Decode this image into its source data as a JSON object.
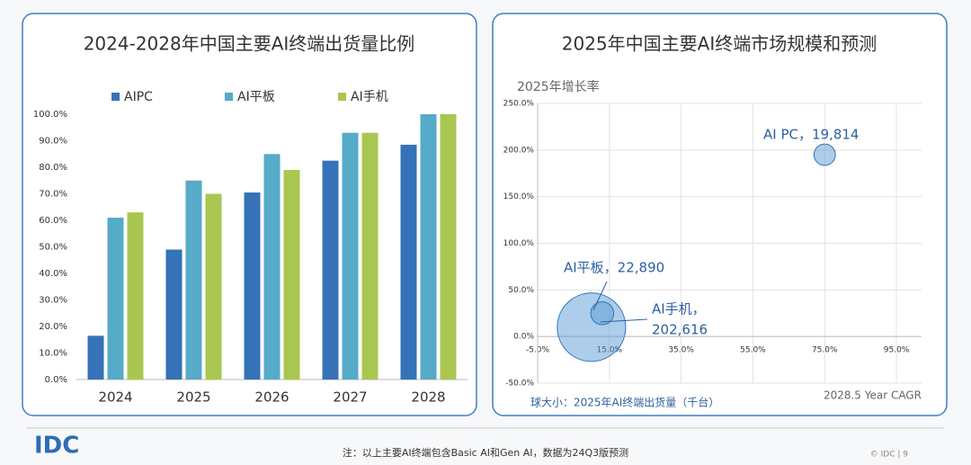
{
  "chart_data": [
    {
      "type": "bar",
      "title": "2024-2028年中国主要AI终端出货量比例",
      "categories": [
        "2024",
        "2025",
        "2026",
        "2027",
        "2028"
      ],
      "series": [
        {
          "name": "AIPC",
          "color": "#3572b8",
          "values": [
            16.5,
            49,
            70.5,
            82.5,
            88.5
          ]
        },
        {
          "name": "AI平板",
          "color": "#55abc8",
          "values": [
            61,
            75,
            85,
            93,
            100
          ]
        },
        {
          "name": "AI手机",
          "color": "#a9c650",
          "values": [
            63,
            70,
            79,
            93,
            100
          ]
        }
      ],
      "ylim": [
        0,
        100
      ],
      "yticks": [
        {
          "value": 0,
          "label": "0.0%"
        },
        {
          "value": 10,
          "label": "10.0%"
        },
        {
          "value": 20,
          "label": "20.0%"
        },
        {
          "value": 30,
          "label": "30.0%"
        },
        {
          "value": 40,
          "label": "40.0%"
        },
        {
          "value": 50,
          "label": "50.0%"
        },
        {
          "value": 60,
          "label": "60.0%"
        },
        {
          "value": 70,
          "label": "70.0%"
        },
        {
          "value": 80,
          "label": "80.0%"
        },
        {
          "value": 90,
          "label": "90.0%"
        },
        {
          "value": 100,
          "label": "100.0%"
        }
      ],
      "grid": false,
      "legend": "top"
    },
    {
      "type": "bubble",
      "title": "2025年中国主要AI终端市场规模和预测",
      "y_label": "2025年增长率",
      "x_label": "2028.5 Year CAGR",
      "size_label": "球大小：2025年AI终端出货量（千台）",
      "points": [
        {
          "x": 75,
          "y": 195,
          "size": 19814,
          "label": [
            "AI PC，19,814"
          ]
        },
        {
          "x": 13,
          "y": 25,
          "size": 22890,
          "label": [
            "AI平板，22,890"
          ]
        },
        {
          "x": 10,
          "y": 10,
          "size": 202616,
          "label": [
            "AI手机，",
            "202,616"
          ]
        }
      ],
      "color": "#5b9bd5",
      "xlim": [
        -5,
        102
      ],
      "xticks": [
        {
          "value": -5,
          "label": "-5.0%"
        },
        {
          "value": 15,
          "label": "15.0%"
        },
        {
          "value": 35,
          "label": "35.0%"
        },
        {
          "value": 55,
          "label": "55.0%"
        },
        {
          "value": 75,
          "label": "75.0%"
        },
        {
          "value": 95,
          "label": "95.0%"
        }
      ],
      "ylim": [
        -50,
        250
      ],
      "yticks": [
        {
          "value": -50,
          "label": "-50.0%"
        },
        {
          "value": 0,
          "label": "0.0%"
        },
        {
          "value": 50,
          "label": "50.0%"
        },
        {
          "value": 100,
          "label": "100.0%"
        },
        {
          "value": 150,
          "label": "150.0%"
        },
        {
          "value": 200,
          "label": "200.0%"
        },
        {
          "value": 250,
          "label": "250.0%"
        }
      ],
      "grid": true
    }
  ],
  "footer": {
    "logo": "IDC",
    "note": "注：以上主要AI终端包含Basic AI和Gen AI，数据为24Q3版预测",
    "page": "© IDC | 9"
  }
}
